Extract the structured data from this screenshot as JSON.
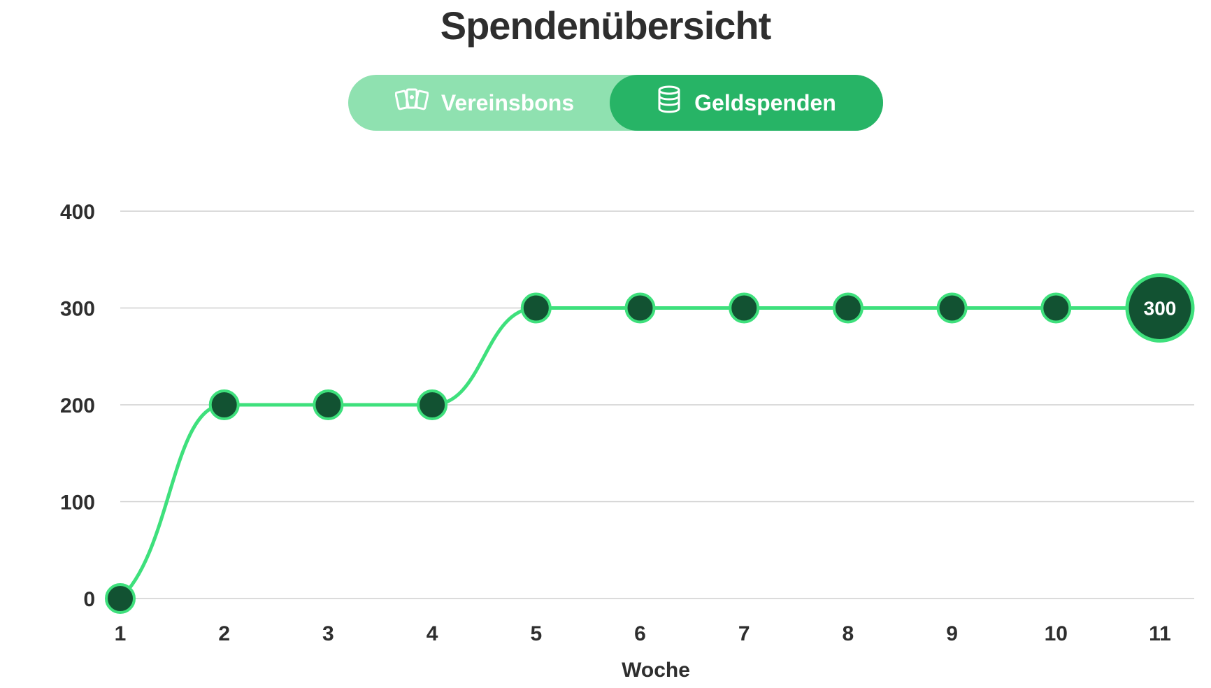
{
  "title": "Spendenübersicht",
  "toggle": {
    "left": {
      "label": "Vereinsbons",
      "icon": "cards-icon",
      "active": false
    },
    "right": {
      "label": "Geldspenden",
      "icon": "coin-stack-icon",
      "active": true
    }
  },
  "colors": {
    "line": "#3ee07c",
    "point_fill": "#125232",
    "toggle_active": "#27b466",
    "toggle_inactive": "#8fe1b0",
    "gridline": "#cfcfcf"
  },
  "chart_data": {
    "type": "line",
    "title": "",
    "xlabel": "Woche",
    "ylabel": "",
    "x": [
      1,
      2,
      3,
      4,
      5,
      6,
      7,
      8,
      9,
      10,
      11
    ],
    "xticks": [
      "1",
      "2",
      "3",
      "4",
      "5",
      "6",
      "7",
      "8",
      "9",
      "10",
      "11"
    ],
    "ylim": [
      0,
      400
    ],
    "yticks": [
      "0",
      "100",
      "200",
      "300",
      "400"
    ],
    "yticks_values": [
      0,
      100,
      200,
      300,
      400
    ],
    "series": [
      {
        "values": [
          0,
          200,
          200,
          200,
          300,
          300,
          300,
          300,
          300,
          300,
          300
        ]
      }
    ],
    "highlight_label": "300",
    "grid": true,
    "curve": "smooth"
  }
}
